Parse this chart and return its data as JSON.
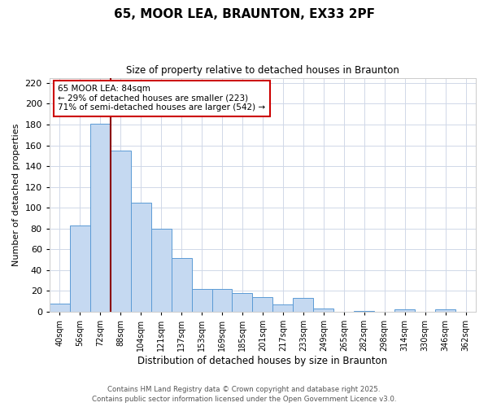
{
  "title": "65, MOOR LEA, BRAUNTON, EX33 2PF",
  "subtitle": "Size of property relative to detached houses in Braunton",
  "xlabel": "Distribution of detached houses by size in Braunton",
  "ylabel": "Number of detached properties",
  "bar_labels": [
    "40sqm",
    "56sqm",
    "72sqm",
    "88sqm",
    "104sqm",
    "121sqm",
    "137sqm",
    "153sqm",
    "169sqm",
    "185sqm",
    "201sqm",
    "217sqm",
    "233sqm",
    "249sqm",
    "265sqm",
    "282sqm",
    "298sqm",
    "314sqm",
    "330sqm",
    "346sqm",
    "362sqm"
  ],
  "bar_values": [
    8,
    83,
    181,
    155,
    105,
    80,
    52,
    22,
    22,
    18,
    14,
    7,
    13,
    3,
    0,
    1,
    0,
    2,
    0,
    2,
    0
  ],
  "bar_color": "#c5d9f1",
  "bar_edge_color": "#5b9bd5",
  "ylim": [
    0,
    225
  ],
  "yticks": [
    0,
    20,
    40,
    60,
    80,
    100,
    120,
    140,
    160,
    180,
    200,
    220
  ],
  "vline_x_label": "88sqm",
  "vline_color": "#8b0000",
  "annotation_title": "65 MOOR LEA: 84sqm",
  "annotation_line1": "← 29% of detached houses are smaller (223)",
  "annotation_line2": "71% of semi-detached houses are larger (542) →",
  "bg_color": "#ffffff",
  "grid_color": "#d0d8e8",
  "footer1": "Contains HM Land Registry data © Crown copyright and database right 2025.",
  "footer2": "Contains public sector information licensed under the Open Government Licence v3.0."
}
